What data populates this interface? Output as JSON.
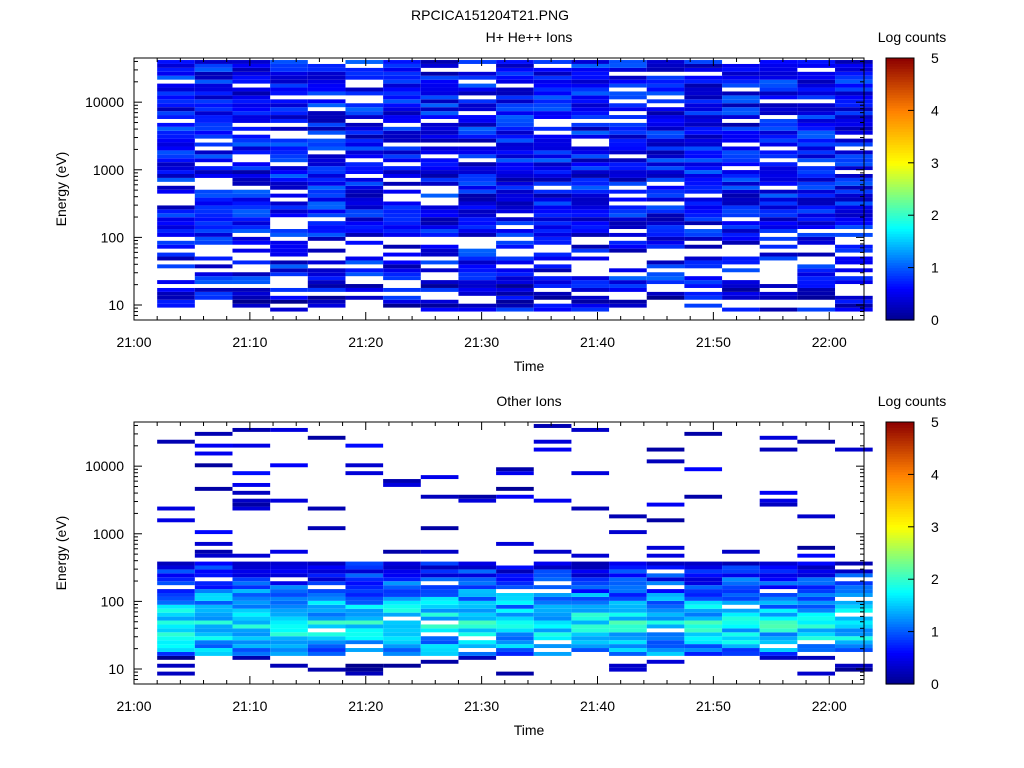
{
  "figure_title": "RPCICA151204T21.PNG",
  "chart_data": [
    {
      "type": "heatmap",
      "title": "H+ He++ Ions",
      "xlabel": "Time",
      "ylabel": "Energy (eV)",
      "x_ticks": [
        "21:00",
        "21:10",
        "21:20",
        "21:30",
        "21:40",
        "21:50",
        "22:00"
      ],
      "x_range": [
        "21:00",
        "22:03"
      ],
      "y_scale": "log",
      "y_ticks": [
        10,
        100,
        1000,
        10000
      ],
      "y_range": [
        6,
        45000
      ],
      "colorbar": {
        "label": "Log counts",
        "ticks": [
          0,
          1,
          2,
          3,
          4,
          5
        ],
        "range": [
          0,
          5
        ]
      },
      "data_start": "21:02",
      "bin_minutes": 3.25,
      "n_time_bins": 19,
      "n_energy_bins": 64,
      "grid": false,
      "character": "broadband blue signal (log counts ~0-1) across all energies with sporadic gaps; sparser below 100 eV"
    },
    {
      "type": "heatmap",
      "title": "Other Ions",
      "xlabel": "Time",
      "ylabel": "Energy (eV)",
      "x_ticks": [
        "21:00",
        "21:10",
        "21:20",
        "21:30",
        "21:40",
        "21:50",
        "22:00"
      ],
      "x_range": [
        "21:00",
        "22:03"
      ],
      "y_scale": "log",
      "y_ticks": [
        10,
        100,
        1000,
        10000
      ],
      "y_range": [
        6,
        45000
      ],
      "colorbar": {
        "label": "Log counts",
        "ticks": [
          0,
          1,
          2,
          3,
          4,
          5
        ],
        "range": [
          0,
          5
        ]
      },
      "data_start": "21:02",
      "bin_minutes": 3.25,
      "n_time_bins": 19,
      "n_energy_bins": 64,
      "grid": false,
      "character": "dense band ~15-400 eV with peak log counts ~1.5-2.3 near 30-80 eV; sparse thin lines at higher energies"
    }
  ]
}
